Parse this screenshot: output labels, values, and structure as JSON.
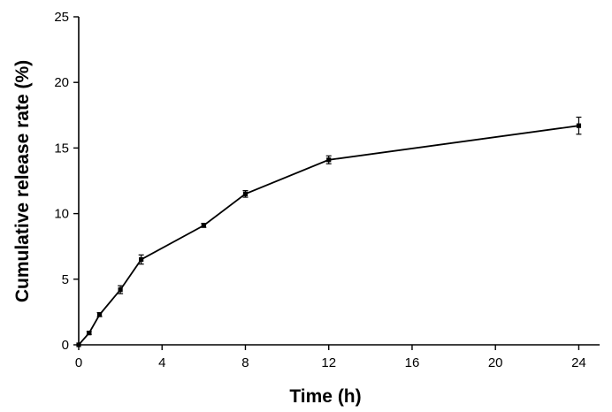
{
  "chart_data": {
    "type": "line",
    "xlabel": "Time (h)",
    "ylabel": "Cumulative release rate (%)",
    "xlim": [
      0,
      25
    ],
    "ylim": [
      0,
      25
    ],
    "x_ticks": [
      0,
      4,
      8,
      12,
      16,
      20,
      24
    ],
    "y_ticks": [
      0,
      5,
      10,
      15,
      20,
      25
    ],
    "grid": false,
    "series": [
      {
        "x": [
          0,
          0.5,
          1,
          2,
          3,
          6,
          8,
          12,
          24
        ],
        "y": [
          0,
          0.9,
          2.3,
          4.2,
          6.5,
          9.1,
          11.5,
          14.1,
          16.7
        ],
        "error": [
          0,
          0.1,
          0.15,
          0.3,
          0.35,
          0.15,
          0.25,
          0.3,
          0.65
        ]
      }
    ]
  }
}
